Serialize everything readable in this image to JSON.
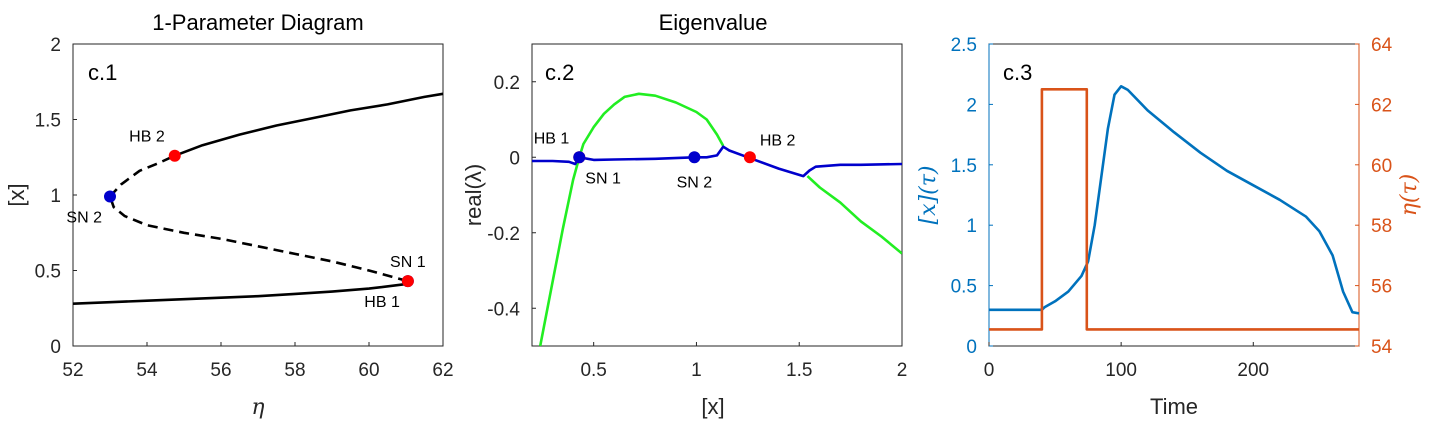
{
  "colors": {
    "black": "#000000",
    "blue": "#0000cc",
    "green": "#22ee22",
    "red": "#ff0000",
    "matlab_blue": "#0072bd",
    "matlab_orange": "#d95319",
    "axis": "#262626"
  },
  "chart_data": [
    {
      "type": "line",
      "panel_label": "c.1",
      "title": "1-Parameter Diagram",
      "xlabel": "η",
      "ylabel": "[x]",
      "xlim": [
        52,
        62
      ],
      "ylim": [
        0,
        2
      ],
      "xticks": [
        52,
        54,
        56,
        58,
        60,
        62
      ],
      "yticks": [
        0,
        0.5,
        1,
        1.5,
        2
      ],
      "xtick_labels": [
        "52",
        "54",
        "56",
        "58",
        "60",
        "62"
      ],
      "ytick_labels": [
        "0",
        "0.5",
        "1",
        "1.5",
        "2"
      ],
      "series": [
        {
          "style": "solid",
          "color": "#000000",
          "points": [
            [
              52,
              0.28
            ],
            [
              53,
              0.29
            ],
            [
              54,
              0.3
            ],
            [
              55,
              0.31
            ],
            [
              56,
              0.32
            ],
            [
              57,
              0.33
            ],
            [
              58,
              0.345
            ],
            [
              59,
              0.36
            ],
            [
              60,
              0.38
            ],
            [
              61,
              0.41
            ],
            [
              61.05,
              0.43
            ]
          ]
        },
        {
          "style": "dashed",
          "color": "#000000",
          "points": [
            [
              61.05,
              0.43
            ],
            [
              60,
              0.5
            ],
            [
              59,
              0.56
            ],
            [
              58,
              0.61
            ],
            [
              57,
              0.66
            ],
            [
              56,
              0.71
            ],
            [
              55,
              0.75
            ],
            [
              54,
              0.8
            ],
            [
              53.4,
              0.86
            ],
            [
              53.1,
              0.92
            ],
            [
              53,
              0.99
            ]
          ]
        },
        {
          "style": "dashed",
          "color": "#000000",
          "points": [
            [
              53,
              0.99
            ],
            [
              53.3,
              1.07
            ],
            [
              53.8,
              1.16
            ],
            [
              54.3,
              1.21
            ],
            [
              54.75,
              1.26
            ]
          ]
        },
        {
          "style": "solid",
          "color": "#000000",
          "points": [
            [
              54.75,
              1.26
            ],
            [
              55.5,
              1.33
            ],
            [
              56.5,
              1.4
            ],
            [
              57.5,
              1.46
            ],
            [
              58.5,
              1.51
            ],
            [
              59.5,
              1.56
            ],
            [
              60.5,
              1.6
            ],
            [
              61.5,
              1.65
            ],
            [
              62,
              1.67
            ]
          ]
        }
      ],
      "markers": [
        {
          "label": "HB 2",
          "x": 54.75,
          "y": 1.26,
          "color": "#ff0000",
          "label_pos": "above-left"
        },
        {
          "label": "SN 2",
          "x": 53,
          "y": 0.99,
          "color": "#0000cc",
          "label_pos": "below-left"
        },
        {
          "label": "SN 1",
          "x": 61.05,
          "y": 0.43,
          "color": "#0000cc",
          "label_pos": "above"
        },
        {
          "label": "HB 1",
          "x": 61.05,
          "y": 0.43,
          "color": "#ff0000",
          "label_pos": "below-left"
        }
      ]
    },
    {
      "type": "line",
      "panel_label": "c.2",
      "title": "Eigenvalue",
      "xlabel": "[x]",
      "ylabel": "real(λ)",
      "xlim": [
        0.2,
        2
      ],
      "ylim": [
        -0.5,
        0.3
      ],
      "xticks": [
        0.5,
        1,
        1.5,
        2
      ],
      "yticks": [
        -0.4,
        -0.2,
        0,
        0.2
      ],
      "xtick_labels": [
        "0.5",
        "1",
        "1.5",
        "2"
      ],
      "ytick_labels": [
        "-0.4",
        "-0.2",
        "0",
        "0.2"
      ],
      "series": [
        {
          "style": "solid",
          "color": "#22ee22",
          "points": [
            [
              0.24,
              -0.5
            ],
            [
              0.3,
              -0.33
            ],
            [
              0.35,
              -0.19
            ],
            [
              0.4,
              -0.06
            ],
            [
              0.43,
              0.0
            ],
            [
              0.45,
              0.035
            ],
            [
              0.5,
              0.08
            ],
            [
              0.55,
              0.115
            ],
            [
              0.6,
              0.14
            ],
            [
              0.65,
              0.16
            ],
            [
              0.72,
              0.168
            ],
            [
              0.8,
              0.163
            ],
            [
              0.9,
              0.145
            ],
            [
              1.0,
              0.12
            ],
            [
              1.05,
              0.1
            ],
            [
              1.1,
              0.06
            ],
            [
              1.13,
              0.03
            ]
          ]
        },
        {
          "style": "solid",
          "color": "#22ee22",
          "points": [
            [
              1.54,
              -0.05
            ],
            [
              1.6,
              -0.08
            ],
            [
              1.7,
              -0.12
            ],
            [
              1.8,
              -0.17
            ],
            [
              1.9,
              -0.21
            ],
            [
              2.0,
              -0.255
            ]
          ]
        },
        {
          "style": "solid",
          "color": "#0000cc",
          "points": [
            [
              0.2,
              -0.01
            ],
            [
              0.3,
              -0.01
            ],
            [
              0.38,
              -0.012
            ],
            [
              0.41,
              -0.018
            ],
            [
              0.43,
              0.0
            ],
            [
              0.5,
              -0.007
            ],
            [
              0.6,
              -0.006
            ],
            [
              0.8,
              -0.004
            ],
            [
              0.99,
              0.0
            ],
            [
              1.05,
              0.0
            ],
            [
              1.1,
              0.005
            ],
            [
              1.13,
              0.028
            ],
            [
              1.16,
              0.018
            ],
            [
              1.25,
              0.0
            ],
            [
              1.4,
              -0.03
            ],
            [
              1.52,
              -0.05
            ],
            [
              1.55,
              -0.035
            ],
            [
              1.58,
              -0.025
            ],
            [
              1.7,
              -0.02
            ],
            [
              1.8,
              -0.02
            ],
            [
              2.0,
              -0.018
            ]
          ]
        }
      ],
      "markers": [
        {
          "label": "HB 1",
          "x": 0.43,
          "y": 0.0,
          "color": "#ff0000",
          "label_pos": "above-left"
        },
        {
          "label": "SN 1",
          "x": 0.43,
          "y": 0.0,
          "color": "#0000cc",
          "label_pos": "below-right"
        },
        {
          "label": "SN 2",
          "x": 0.99,
          "y": 0.0,
          "color": "#0000cc",
          "label_pos": "below"
        },
        {
          "label": "HB 2",
          "x": 1.26,
          "y": 0.0,
          "color": "#ff0000",
          "label_pos": "above-right"
        }
      ]
    },
    {
      "type": "line",
      "panel_label": "c.3",
      "title": "",
      "xlabel": "Time",
      "ylabel_left": "[x](τ)",
      "ylabel_right": "η(τ)",
      "xlim": [
        0,
        280
      ],
      "ylim_left": [
        0,
        2.5
      ],
      "ylim_right": [
        54,
        64
      ],
      "xticks": [
        0,
        100,
        200
      ],
      "yticks_left": [
        0,
        0.5,
        1,
        1.5,
        2,
        2.5
      ],
      "yticks_right": [
        54,
        56,
        58,
        60,
        62,
        64
      ],
      "xtick_labels": [
        "0",
        "100",
        "200"
      ],
      "ytick_labels_left": [
        "0",
        "0.5",
        "1",
        "1.5",
        "2",
        "2.5"
      ],
      "ytick_labels_right": [
        "54",
        "56",
        "58",
        "60",
        "62",
        "64"
      ],
      "series": [
        {
          "name": "[x](τ)",
          "axis": "left",
          "color": "#0072bd",
          "points": [
            [
              0,
              0.3
            ],
            [
              40,
              0.3
            ],
            [
              42,
              0.32
            ],
            [
              50,
              0.37
            ],
            [
              60,
              0.45
            ],
            [
              70,
              0.58
            ],
            [
              75,
              0.7
            ],
            [
              80,
              1.0
            ],
            [
              85,
              1.4
            ],
            [
              90,
              1.8
            ],
            [
              95,
              2.08
            ],
            [
              100,
              2.15
            ],
            [
              105,
              2.12
            ],
            [
              120,
              1.95
            ],
            [
              140,
              1.77
            ],
            [
              160,
              1.6
            ],
            [
              180,
              1.45
            ],
            [
              200,
              1.33
            ],
            [
              220,
              1.21
            ],
            [
              240,
              1.07
            ],
            [
              250,
              0.95
            ],
            [
              260,
              0.75
            ],
            [
              268,
              0.45
            ],
            [
              275,
              0.28
            ],
            [
              280,
              0.27
            ]
          ]
        },
        {
          "name": "η(τ)",
          "axis": "right",
          "color": "#d95319",
          "points": [
            [
              0,
              54.55
            ],
            [
              40,
              54.55
            ],
            [
              40,
              62.5
            ],
            [
              74,
              62.5
            ],
            [
              74,
              54.55
            ],
            [
              280,
              54.55
            ]
          ]
        }
      ]
    }
  ]
}
